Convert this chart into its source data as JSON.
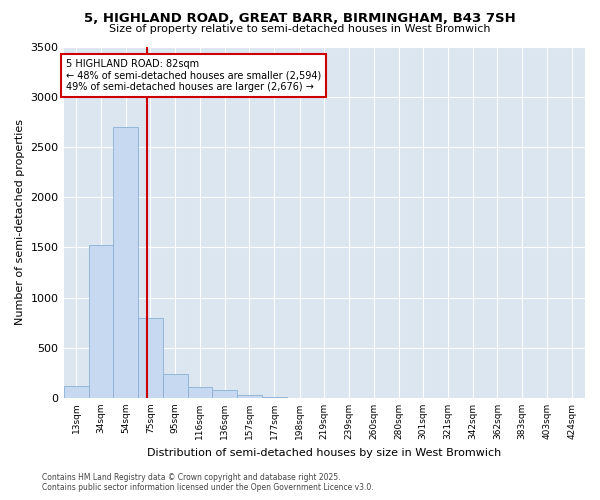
{
  "title": "5, HIGHLAND ROAD, GREAT BARR, BIRMINGHAM, B43 7SH",
  "subtitle": "Size of property relative to semi-detached houses in West Bromwich",
  "xlabel": "Distribution of semi-detached houses by size in West Bromwich",
  "ylabel": "Number of semi-detached properties",
  "footer_line1": "Contains HM Land Registry data © Crown copyright and database right 2025.",
  "footer_line2": "Contains public sector information licensed under the Open Government Licence v3.0.",
  "annotation_line1": "5 HIGHLAND ROAD: 82sqm",
  "annotation_line2": "← 48% of semi-detached houses are smaller (2,594)",
  "annotation_line3": "49% of semi-detached houses are larger (2,676) →",
  "property_size": 82,
  "bins": [
    13,
    34,
    54,
    75,
    95,
    116,
    136,
    157,
    177,
    198,
    219,
    239,
    260,
    280,
    301,
    321,
    342,
    362,
    383,
    403,
    424
  ],
  "counts": [
    120,
    1520,
    2700,
    800,
    240,
    105,
    75,
    30,
    8,
    4,
    2,
    2,
    1,
    0,
    0,
    0,
    0,
    0,
    0,
    0
  ],
  "bar_color": "#c6d9f0",
  "bar_edge_color": "#8ab0d4",
  "vline_color": "#cc0000",
  "annotation_box_color": "#cc0000",
  "background_color": "#ffffff",
  "plot_bg_color": "#dce6f1",
  "grid_color": "#ffffff",
  "ylim": [
    0,
    3500
  ],
  "yticks": [
    0,
    500,
    1000,
    1500,
    2000,
    2500,
    3000,
    3500
  ]
}
